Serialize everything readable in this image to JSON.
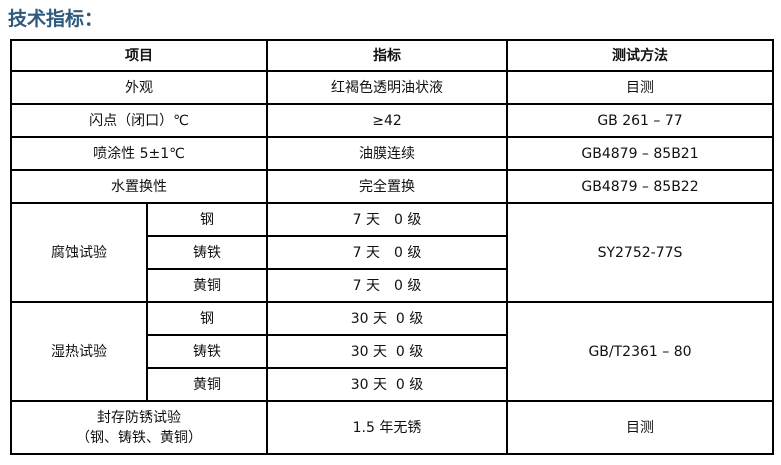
{
  "title": "技术指标：",
  "headers": [
    "项目",
    "指标",
    "测试方法"
  ],
  "rows": [
    {
      "item": "外观",
      "value": "红褐色透明油状液",
      "method": "目测"
    },
    {
      "item": "闪点（闭口）℃",
      "value": "≥42",
      "method": "GB 261 – 77"
    },
    {
      "item": "喷涂性 5±1℃",
      "value": "油膜连续",
      "method": "GB4879 – 85B21"
    },
    {
      "item": "水置换性",
      "value": "完全置换",
      "method": "GB4879 – 85B22"
    }
  ],
  "corrosion": {
    "item": "腐蚀试验",
    "method": "SY2752-77S",
    "sub": [
      {
        "metal": "钢",
        "value": "7 天　0 级"
      },
      {
        "metal": "铸铁",
        "value": "7 天　0 级"
      },
      {
        "metal": "黄铜",
        "value": "7 天　0 级"
      }
    ]
  },
  "humid": {
    "item": "湿热试验",
    "method": "GB/T2361 – 80",
    "sub": [
      {
        "metal": "钢",
        "value": "30 天  0 级"
      },
      {
        "metal": "铸铁",
        "value": "30 天  0 级"
      },
      {
        "metal": "黄铜",
        "value": "30 天  0 级"
      }
    ]
  },
  "storage": {
    "item_line1": "封存防锈试验",
    "item_line2": "（钢、铸铁、黄铜）",
    "value": "1.5 年无锈",
    "method": "目测"
  }
}
